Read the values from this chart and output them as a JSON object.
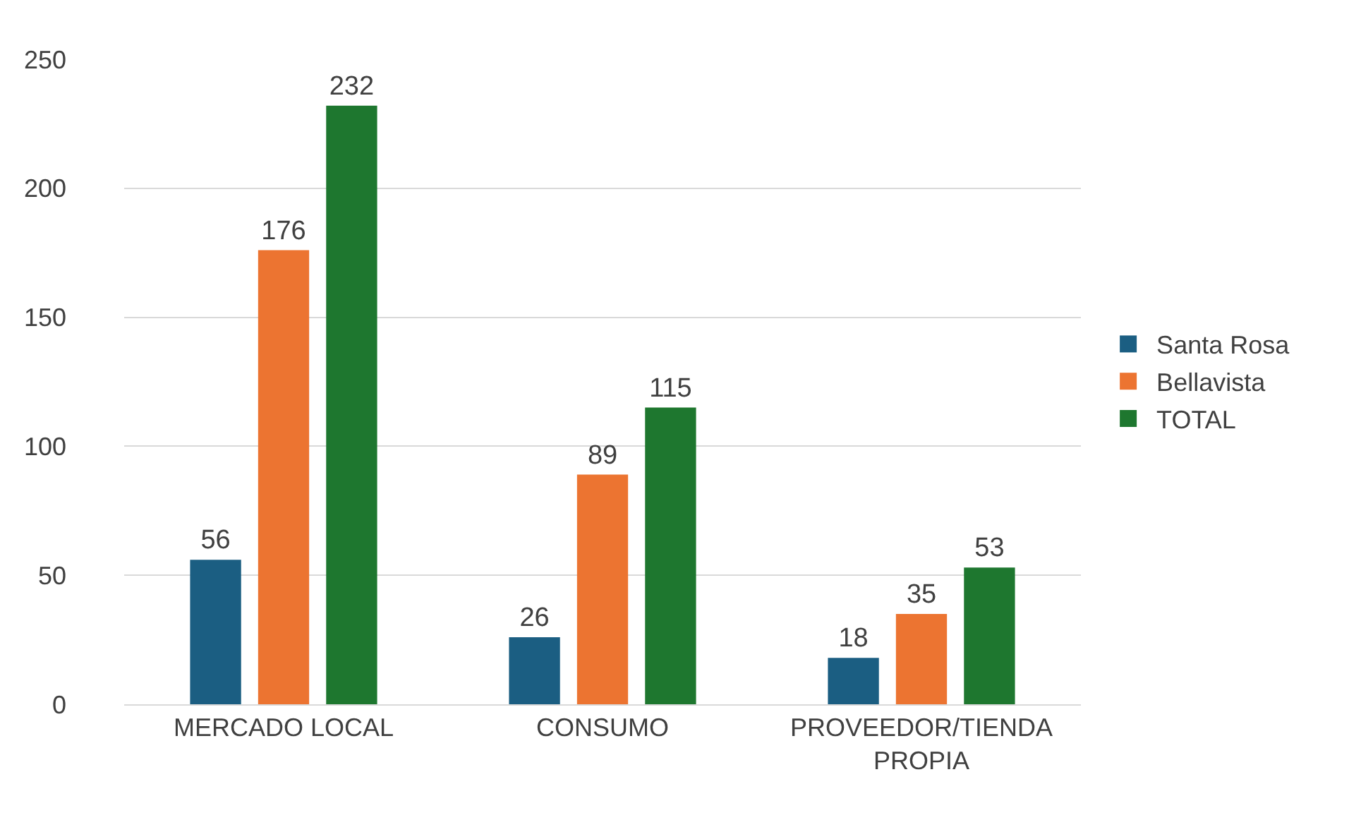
{
  "chart_data": {
    "type": "bar",
    "categories": [
      "MERCADO LOCAL",
      "CONSUMO",
      "PROVEEDOR/TIENDA PROPIA"
    ],
    "series": [
      {
        "name": "Santa Rosa",
        "color": "#1b5e82",
        "values": [
          56,
          26,
          18
        ]
      },
      {
        "name": "Bellavista",
        "color": "#ec7431",
        "values": [
          176,
          89,
          35
        ]
      },
      {
        "name": "TOTAL",
        "color": "#1e772f",
        "values": [
          232,
          115,
          53
        ]
      }
    ],
    "ylim": [
      0,
      250
    ],
    "yticks": [
      0,
      50,
      100,
      150,
      200,
      250
    ],
    "grid": "y",
    "legend": "right",
    "data_labels": true
  }
}
